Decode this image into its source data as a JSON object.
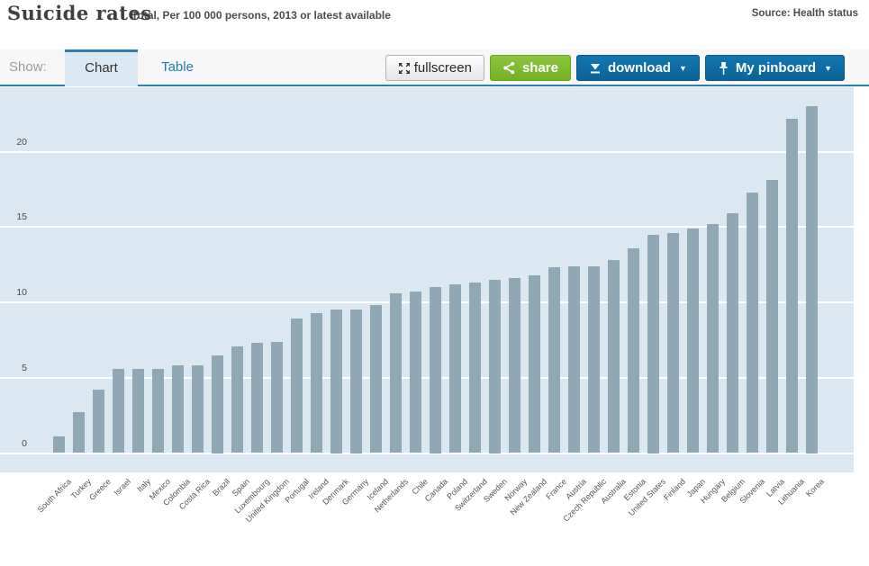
{
  "header": {
    "title": "Suicide rates",
    "subtitle": "Total, Per 100 000 persons, 2013 or latest available",
    "source": "Source: Health status"
  },
  "toolbar": {
    "show_label": "Show:",
    "tabs": [
      {
        "label": "Chart",
        "active": true
      },
      {
        "label": "Table",
        "active": false
      }
    ],
    "buttons": {
      "fullscreen": "fullscreen",
      "share": "share",
      "download": "download",
      "pinboard": "My pinboard",
      "caret": "▼"
    }
  },
  "colors": {
    "accent_blue": "#2e7cb5",
    "button_blue": "#0e6da3",
    "button_green": "#7cb92e",
    "tab_link_blue": "#1f7aad",
    "bar_color": "#90a7b6",
    "plot_background": "#dce8f1"
  },
  "chart_data": {
    "type": "bar",
    "title": "Suicide rates",
    "subtitle": "Total, Per 100 000 persons, 2013 or latest available",
    "ylabel": "Per 100 000 persons",
    "categories": [
      "South Africa",
      "Turkey",
      "Greece",
      "Israel",
      "Italy",
      "Mexico",
      "Colombia",
      "Costa Rica",
      "Brazil",
      "Spain",
      "Luxembourg",
      "United Kingdom",
      "Portugal",
      "Ireland",
      "Denmark",
      "Germany",
      "Iceland",
      "Netherlands",
      "Chile",
      "Canada",
      "Poland",
      "Switzerland",
      "Sweden",
      "Norway",
      "New Zealand",
      "France",
      "Austria",
      "Czech Republic",
      "Australia",
      "Estonia",
      "United States",
      "Finland",
      "Japan",
      "Hungary",
      "Belgium",
      "Slovenia",
      "Latvia",
      "Lithuania",
      "Korea"
    ],
    "values": [
      1.1,
      2.7,
      4.2,
      5.6,
      5.6,
      5.6,
      5.8,
      5.8,
      6.5,
      7.1,
      7.3,
      7.4,
      8.9,
      9.3,
      9.5,
      9.5,
      9.8,
      10.6,
      10.7,
      11.0,
      11.2,
      11.3,
      11.5,
      11.6,
      11.8,
      12.3,
      12.4,
      12.4,
      12.8,
      13.6,
      14.5,
      14.6,
      14.9,
      15.2,
      15.9,
      17.3,
      18.1,
      22.2,
      23.0
    ],
    "y_ticks": [
      0,
      5,
      10,
      15,
      20
    ],
    "ylim": [
      0,
      24.5
    ],
    "grid": true,
    "legend": "none",
    "bar_color": "#90a7b6",
    "plot_bg": "#dce8f1"
  }
}
